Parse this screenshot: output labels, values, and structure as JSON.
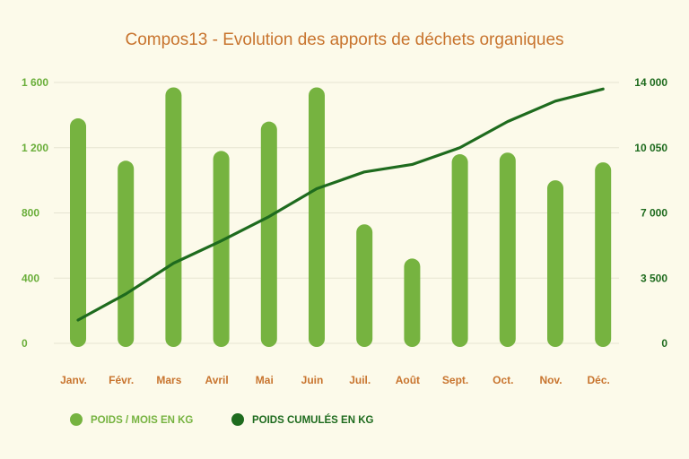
{
  "chart_data": {
    "type": "bar",
    "title": "Compos13 - Evolution des apports de déchets organiques",
    "categories": [
      "Janv.",
      "Févr.",
      "Mars",
      "Avril",
      "Mai",
      "Juin",
      "Juil.",
      "Août",
      "Sept.",
      "Oct.",
      "Nov.",
      "Déc."
    ],
    "series": [
      {
        "name": "POIDS / MOIS EN KG",
        "kind": "bar",
        "axis": "left",
        "color": "#76b340",
        "values": [
          1380,
          1120,
          1570,
          1180,
          1360,
          1570,
          730,
          520,
          1160,
          1170,
          1000,
          1110
        ]
      },
      {
        "name": "POIDS CUMULÉS EN KG",
        "kind": "line",
        "axis": "right",
        "color": "#1e6b1e",
        "values": [
          1250,
          2650,
          4300,
          5500,
          6800,
          8300,
          9200,
          9600,
          10500,
          11900,
          13000,
          13650
        ]
      }
    ],
    "y_left": {
      "range": [
        0,
        1600
      ],
      "ticks": [
        "0",
        "400",
        "800",
        "1 200",
        "1 600"
      ]
    },
    "y_right": {
      "range": [
        0,
        14000
      ],
      "ticks": [
        "0",
        "3 500",
        "7 000",
        "10 050",
        "14 000"
      ]
    },
    "grid": true,
    "legend_position": "bottom-left"
  }
}
